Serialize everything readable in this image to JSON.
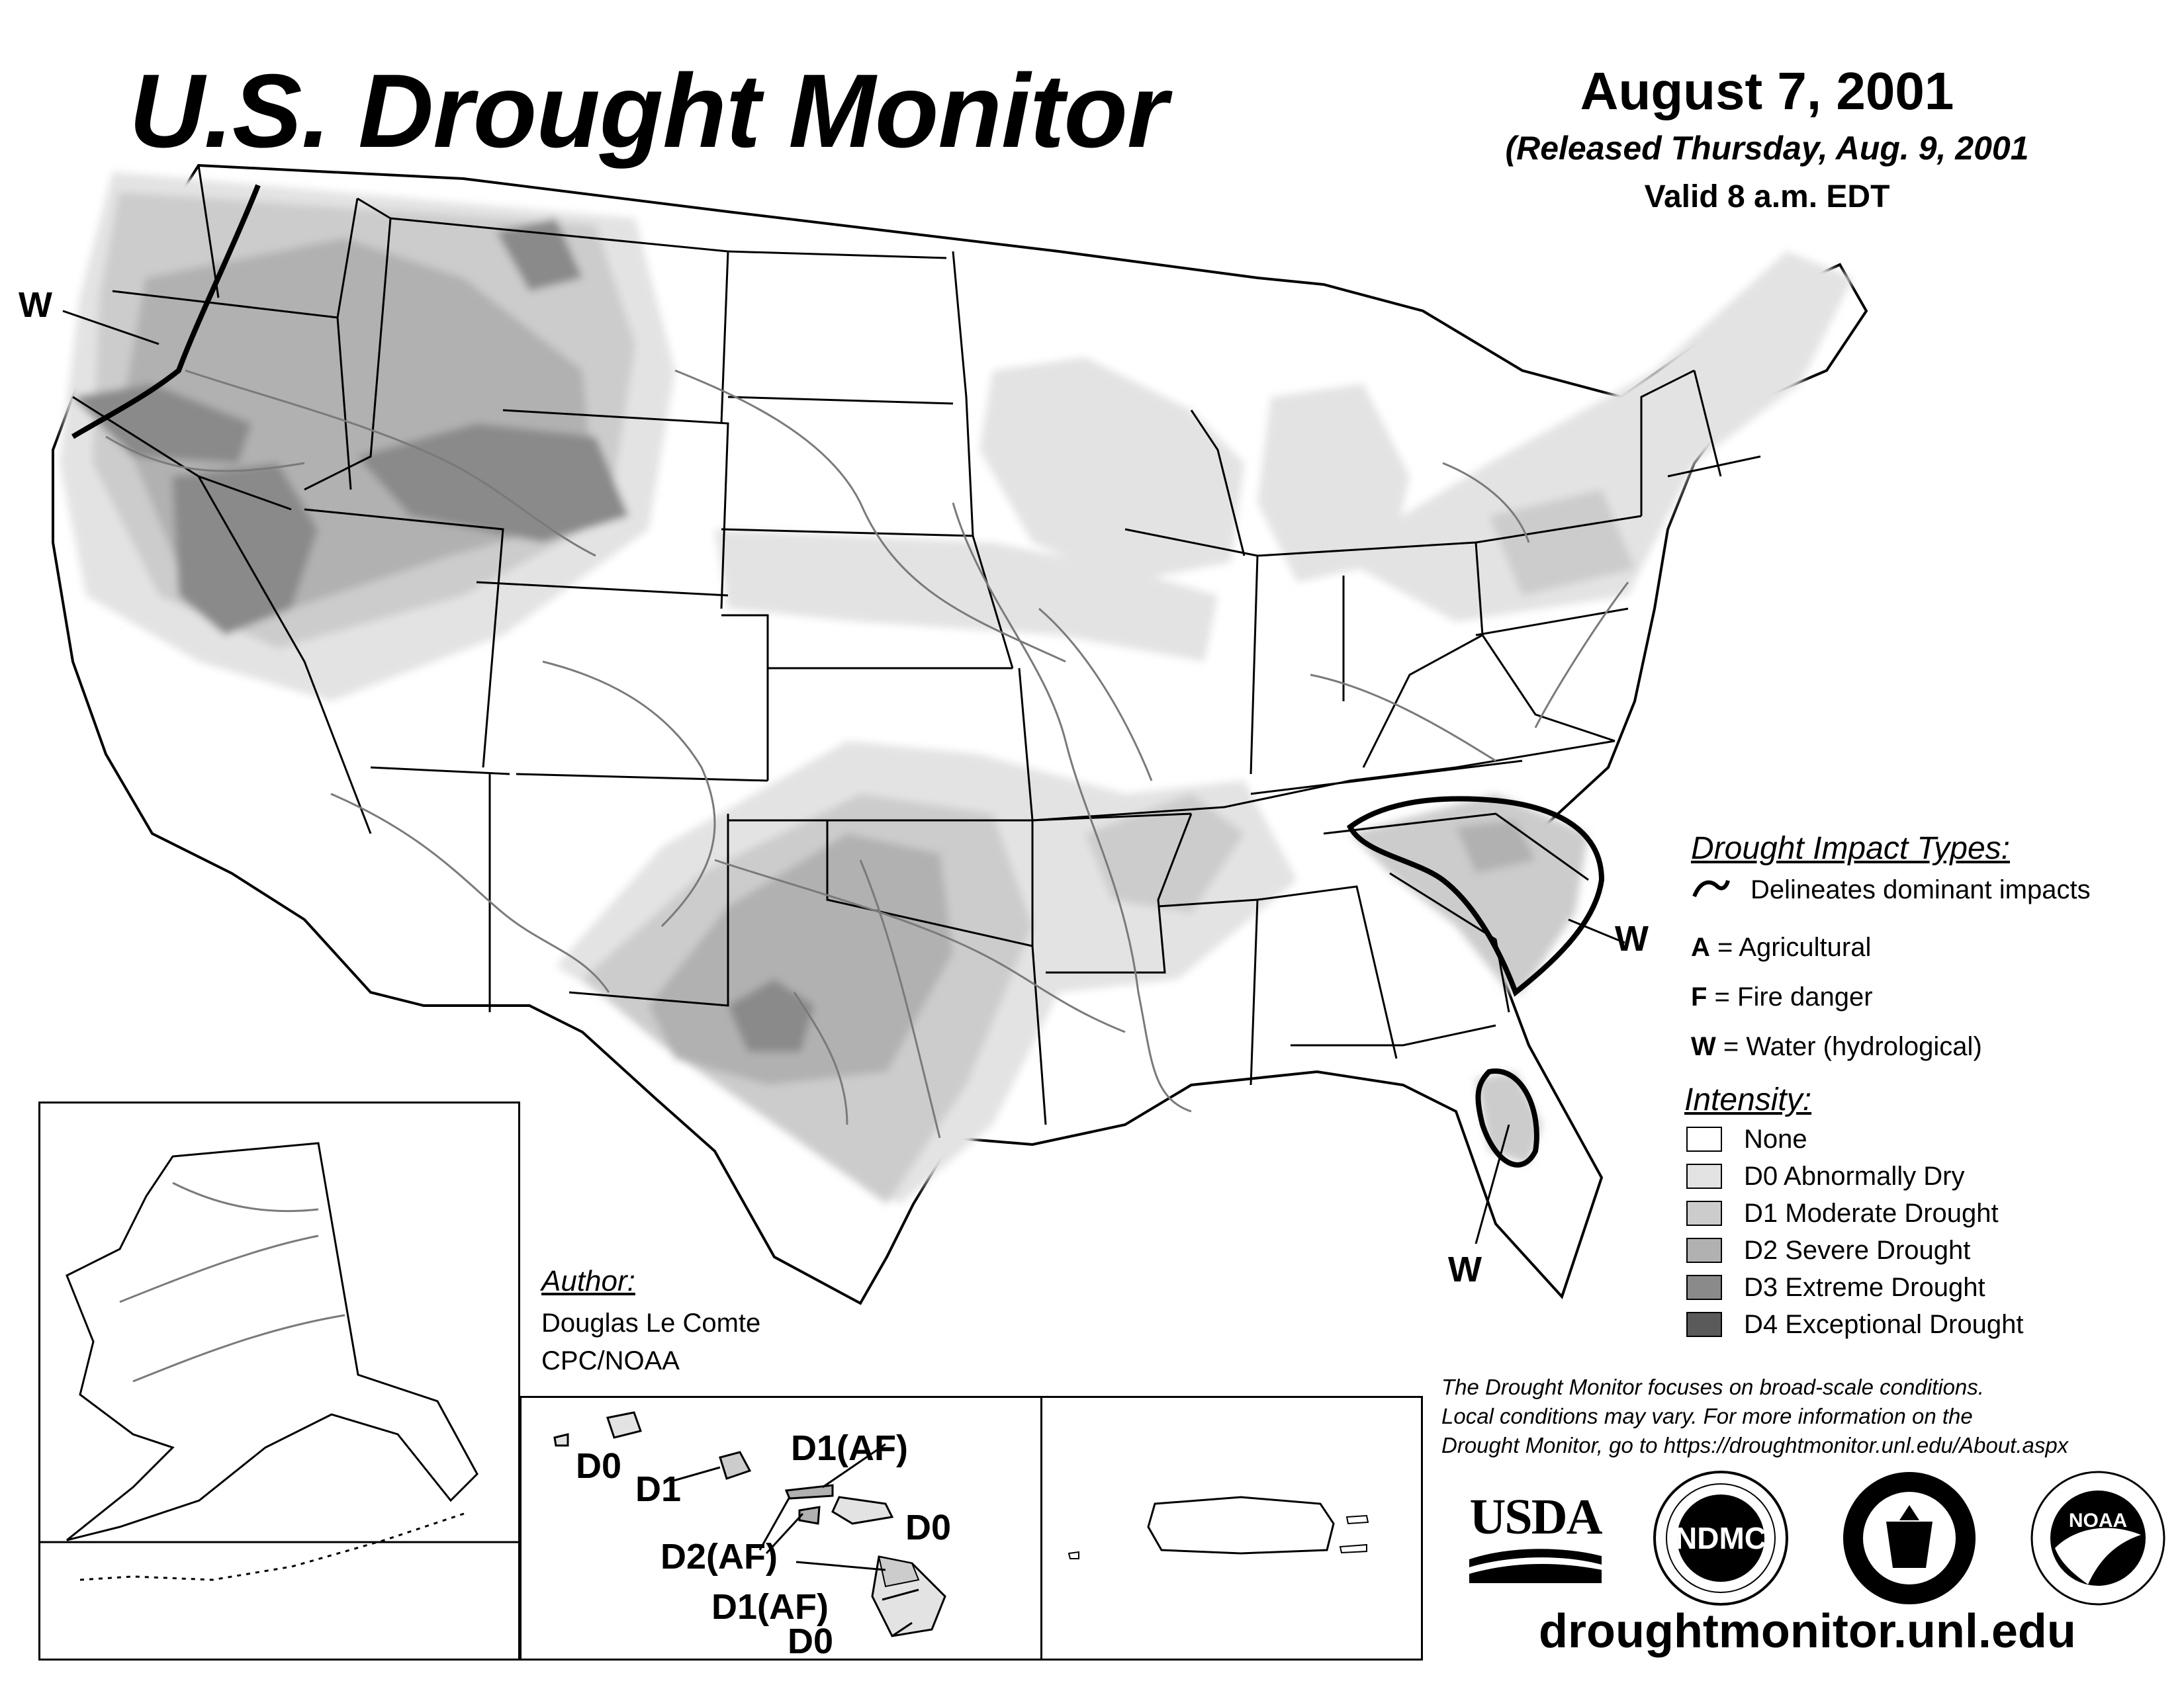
{
  "header": {
    "title": "U.S. Drought Monitor",
    "date": "August 7, 2001",
    "released": "(Released Thursday, Aug. 9, 2001",
    "valid": "Valid 8 a.m. EDT"
  },
  "map_labels": {
    "w_northwest": "W",
    "w_southeast": "W",
    "w_florida": "W"
  },
  "hawaii_labels": {
    "d0_kauai": "D0",
    "d1_oahu": "D1",
    "d1af_molokai": "D1(AF)",
    "d0_maui": "D0",
    "d2af": "D2(AF)",
    "d1af_bigisland": "D1(AF)",
    "d0_bigisland": "D0"
  },
  "legend": {
    "impact_heading": "Drought Impact Types:",
    "delineates": "Delineates dominant impacts",
    "impacts": [
      {
        "code": "A",
        "text": " = Agricultural"
      },
      {
        "code": "F",
        "text": " = Fire danger"
      },
      {
        "code": "W",
        "text": " = Water (hydrological)"
      }
    ],
    "intensity_heading": "Intensity:",
    "intensity": [
      {
        "label": "None",
        "color": "#ffffff"
      },
      {
        "label": "D0 Abnormally Dry",
        "color": "#e3e3e3"
      },
      {
        "label": "D1 Moderate Drought",
        "color": "#cccccc"
      },
      {
        "label": "D2 Severe Drought",
        "color": "#b1b1b1"
      },
      {
        "label": "D3 Extreme Drought",
        "color": "#8a8a8a"
      },
      {
        "label": "D4 Exceptional Drought",
        "color": "#5a5a5a"
      }
    ]
  },
  "author": {
    "heading": "Author:",
    "name": "Douglas Le Comte",
    "org": "CPC/NOAA"
  },
  "note": {
    "line1": "The Drought Monitor focuses on broad-scale conditions.",
    "line2": "Local conditions may vary. For more information on the",
    "line3": "Drought Monitor, go to https://droughtmonitor.unl.edu/About.aspx"
  },
  "logos": {
    "usda": "USDA",
    "ndmc": "NDMC",
    "noaa": "NOAA"
  },
  "website": "droughtmonitor.unl.edu",
  "colors": {
    "d0": "#e3e3e3",
    "d1": "#cccccc",
    "d2": "#b1b1b1",
    "d3": "#8a8a8a",
    "d4": "#5a5a5a",
    "river": "#7a7a7a",
    "border": "#000000"
  }
}
